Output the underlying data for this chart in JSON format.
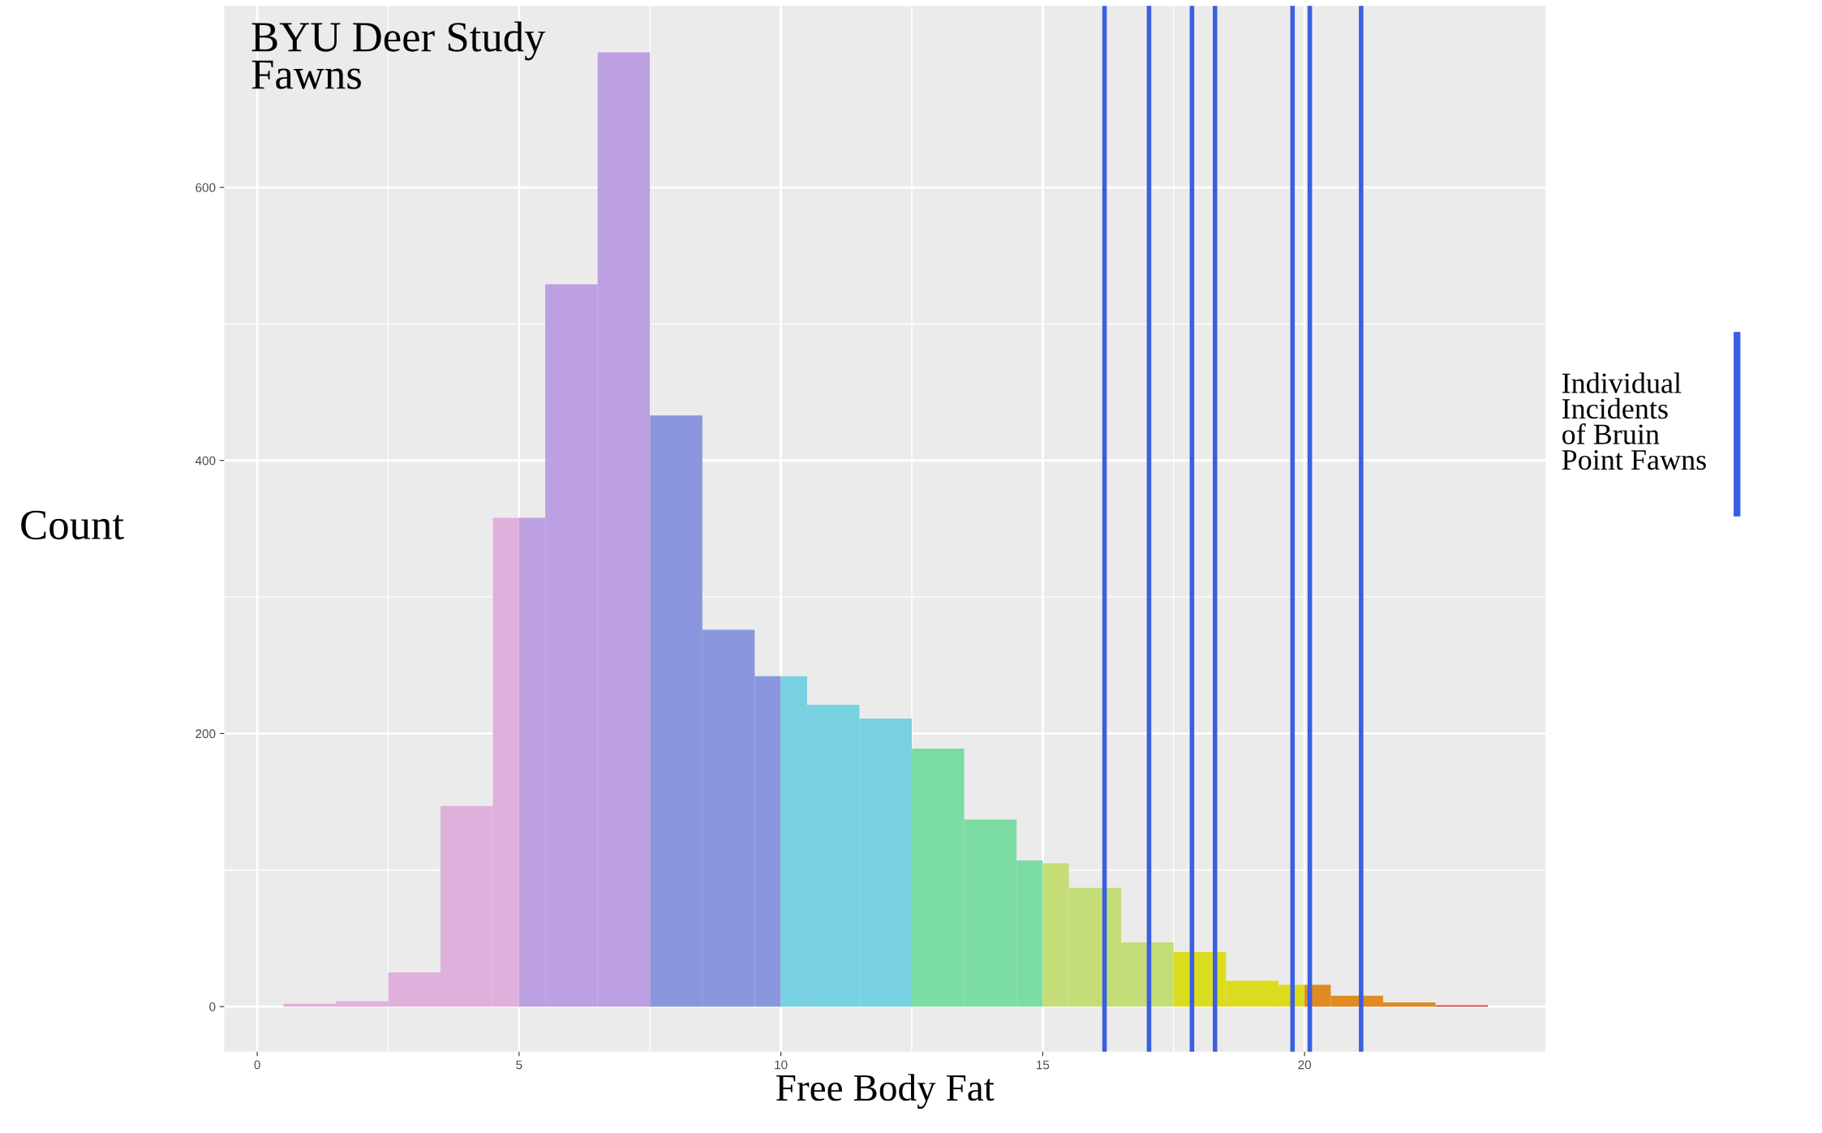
{
  "chart_data": {
    "type": "histogram",
    "title": "BYU Deer Study\nFawns",
    "xlabel": "Free Body Fat",
    "ylabel": "Count",
    "bins": [
      0.5,
      1.5,
      2.5,
      3.5,
      4.5,
      5,
      5.5,
      6.5,
      7.5,
      8.5,
      9.5,
      10,
      10.5,
      11.5,
      12.5,
      13.5,
      14.5,
      15,
      15.5,
      16.5,
      17.5,
      18.5,
      19.5,
      20,
      20.5,
      21.5,
      22.5,
      23.5
    ],
    "values": [
      2,
      4,
      25,
      147,
      358,
      358,
      529,
      699,
      433,
      276,
      242,
      242,
      221,
      211,
      189,
      137,
      107,
      105,
      87,
      47,
      40,
      19,
      16,
      16,
      8,
      3,
      1
    ],
    "colors": [
      "#e0b0dc",
      "#e0b0dc",
      "#e0b0dc",
      "#e0b0dc",
      "#e0b0dc",
      "#bda0e2",
      "#bda0e2",
      "#bda0e2",
      "#8a97de",
      "#8a97de",
      "#8a97de",
      "#77d1e0",
      "#77d1e0",
      "#77d1e0",
      "#7cdda4",
      "#7cdda4",
      "#7cdda4",
      "#c5dd78",
      "#c5dd78",
      "#c5dd78",
      "#dcdc1f",
      "#dcdc1f",
      "#dcdc1f",
      "#e08a22",
      "#e08a22",
      "#e08a22",
      "#e0403a"
    ],
    "xlim": [
      -0.63,
      24.6
    ],
    "ylim": [
      -33,
      733
    ],
    "xticks": [
      0,
      5,
      10,
      15,
      20
    ],
    "yticks": [
      0,
      200,
      400,
      600
    ],
    "grid": true,
    "annotations": [
      "Individual\nIncidents\nof Bruin\nPoint Fawns"
    ],
    "ref_lines": [
      {
        "axis": "x",
        "value": 16.18,
        "color": "#3a5fe0"
      },
      {
        "axis": "x",
        "value": 17.03,
        "color": "#3a5fe0"
      },
      {
        "axis": "x",
        "value": 17.85,
        "color": "#3a5fe0"
      },
      {
        "axis": "x",
        "value": 18.29,
        "color": "#3a5fe0"
      },
      {
        "axis": "x",
        "value": 19.77,
        "color": "#3a5fe0"
      },
      {
        "axis": "x",
        "value": 20.1,
        "color": "#3a5fe0"
      },
      {
        "axis": "x",
        "value": 21.08,
        "color": "#3a5fe0"
      }
    ]
  }
}
